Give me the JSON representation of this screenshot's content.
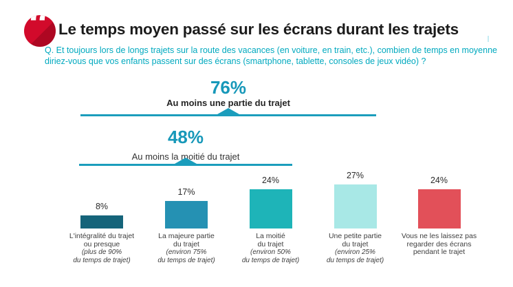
{
  "header": {
    "quote_glyph": "“",
    "quote_icon_color": "#d20a2b",
    "title": "Le temps moyen passé sur les écrans durant les trajets"
  },
  "question": {
    "line1": "Q. Et toujours lors de longs trajets sur la route des vacances (en voiture, en train, etc.), combien de temps en moyenne",
    "line2": "diriez-vous que vos enfants passent sur des écrans (smartphone, tablette, consoles de jeux vidéo) ?"
  },
  "colors": {
    "accent_teal": "#1b9dbc",
    "question_teal": "#00a9bf",
    "title_black": "#1b1b1b"
  },
  "chart_data": {
    "type": "bar",
    "title": "Le temps moyen passé sur les écrans durant les trajets",
    "unit": "%",
    "values": [
      8,
      17,
      24,
      27,
      24
    ],
    "value_labels": [
      "8%",
      "17%",
      "24%",
      "27%",
      "24%"
    ],
    "bar_colors": [
      "#15647a",
      "#2591b3",
      "#1eb4b8",
      "#a8e8e6",
      "#e25059"
    ],
    "categories": [
      "L'intégralité du trajet ou presque (plus de 90% du temps de trajet)",
      "La majeure partie du trajet (environ 75% du temps de trajet)",
      "La moitié du trajet (environ 50% du temps de trajet)",
      "Une petite partie du trajet (environ 25% du temps de trajet)",
      "Vous ne les laissez pas regarder des écrans pendant le trajet"
    ],
    "category_label_lines": [
      [
        "L'intégralité du trajet",
        "ou presque"
      ],
      [
        "La majeure partie",
        "du trajet"
      ],
      [
        "La moitié",
        "du trajet"
      ],
      [
        "Une petite partie",
        "du trajet"
      ],
      [
        "Vous ne les laissez pas",
        "regarder des écrans",
        "pendant le trajet"
      ]
    ],
    "category_note_lines": [
      [
        "(plus de 90%",
        "du temps de trajet)"
      ],
      [
        "(environ 75%",
        "du temps de trajet)"
      ],
      [
        "(environ 50%",
        "du temps de trajet)"
      ],
      [
        "(environ 25%",
        "du temps de trajet)"
      ],
      []
    ],
    "annotations": [
      {
        "value": 76,
        "value_label": "76%",
        "label": "Au moins une partie du trajet"
      },
      {
        "value": 48,
        "value_label": "48%",
        "label": "Au moins la moitié du trajet"
      }
    ],
    "ylim": [
      0,
      30
    ],
    "grid": false,
    "legend": false
  }
}
